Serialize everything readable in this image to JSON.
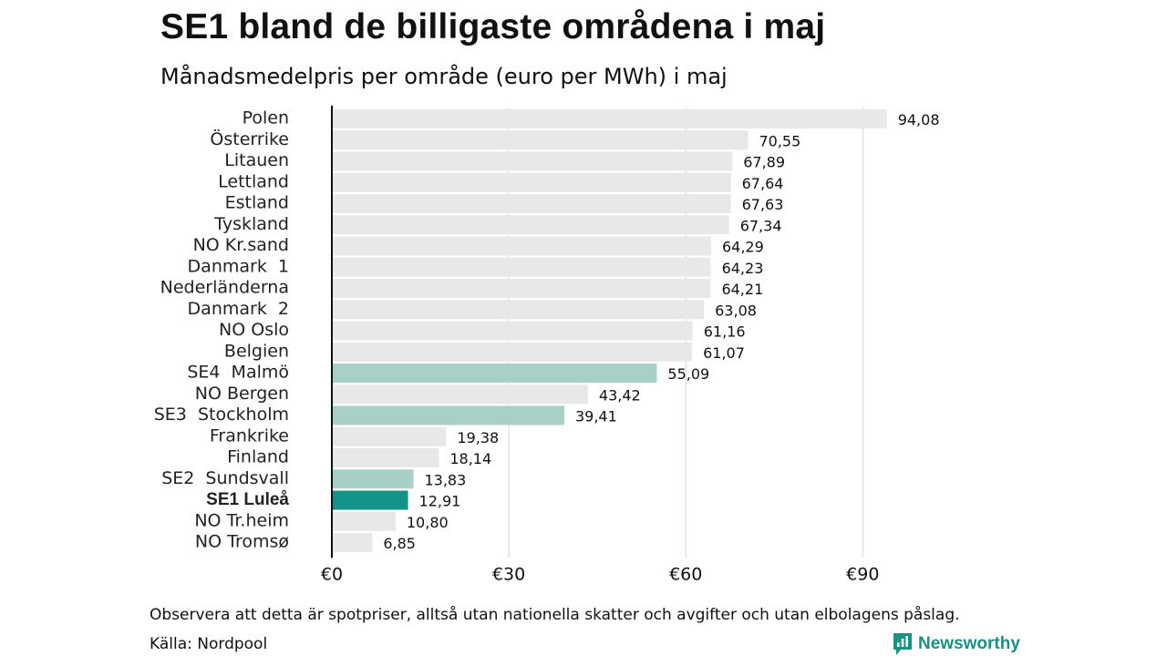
{
  "title": "SE1 bland de billigaste områdena i maj",
  "subtitle": "Månadsmedelpris per område (euro per MWh) i maj",
  "note": "Observera att detta är spotpriser, alltså utan nationella skatter och avgifter och utan elbolagens påslag.",
  "source": "Källa: Nordpool",
  "brand": {
    "name": "Newsworthy",
    "icon": "newsworthy-logo-icon",
    "color": "#1a8f84"
  },
  "colors": {
    "default": "#e8e8e8",
    "swedish": "#a6d0c8",
    "highlight": "#14938a"
  },
  "chart_data": {
    "type": "bar",
    "orientation": "horizontal",
    "categories": [
      "Polen",
      "Österrike",
      "Litauen",
      "Lettland",
      "Estland",
      "Tyskland",
      "NO Kr.sand",
      "Danmark  1",
      "Nederländerna",
      "Danmark  2",
      "NO Oslo",
      "Belgien",
      "SE4  Malmö",
      "NO Bergen",
      "SE3  Stockholm",
      "Frankrike",
      "Finland",
      "SE2  Sundsvall",
      "SE1 Luleå",
      "NO Tr.heim",
      "NO Tromsø"
    ],
    "values": [
      94.08,
      70.55,
      67.89,
      67.64,
      67.63,
      67.34,
      64.29,
      64.23,
      64.21,
      63.08,
      61.16,
      61.07,
      55.09,
      43.42,
      39.41,
      19.38,
      18.14,
      13.83,
      12.91,
      10.8,
      6.85
    ],
    "value_labels": [
      "94,08",
      "70,55",
      "67,89",
      "67,64",
      "67,63",
      "67,34",
      "64,29",
      "64,23",
      "64,21",
      "63,08",
      "61,16",
      "61,07",
      "55,09",
      "43,42",
      "39,41",
      "19,38",
      "18,14",
      "13,83",
      "12,91",
      "10,80",
      "6,85"
    ],
    "bar_style": [
      "default",
      "default",
      "default",
      "default",
      "default",
      "default",
      "default",
      "default",
      "default",
      "default",
      "default",
      "default",
      "swedish",
      "default",
      "swedish",
      "default",
      "default",
      "swedish",
      "highlight",
      "default",
      "default"
    ],
    "xticks": [
      0,
      30,
      60,
      90
    ],
    "xtick_labels": [
      "€0",
      "€30",
      "€60",
      "€90"
    ],
    "xlim": [
      0,
      100
    ],
    "grid": true,
    "title": "SE1 bland de billigaste områdena i maj",
    "subtitle": "Månadsmedelpris per område (euro per MWh) i maj"
  }
}
